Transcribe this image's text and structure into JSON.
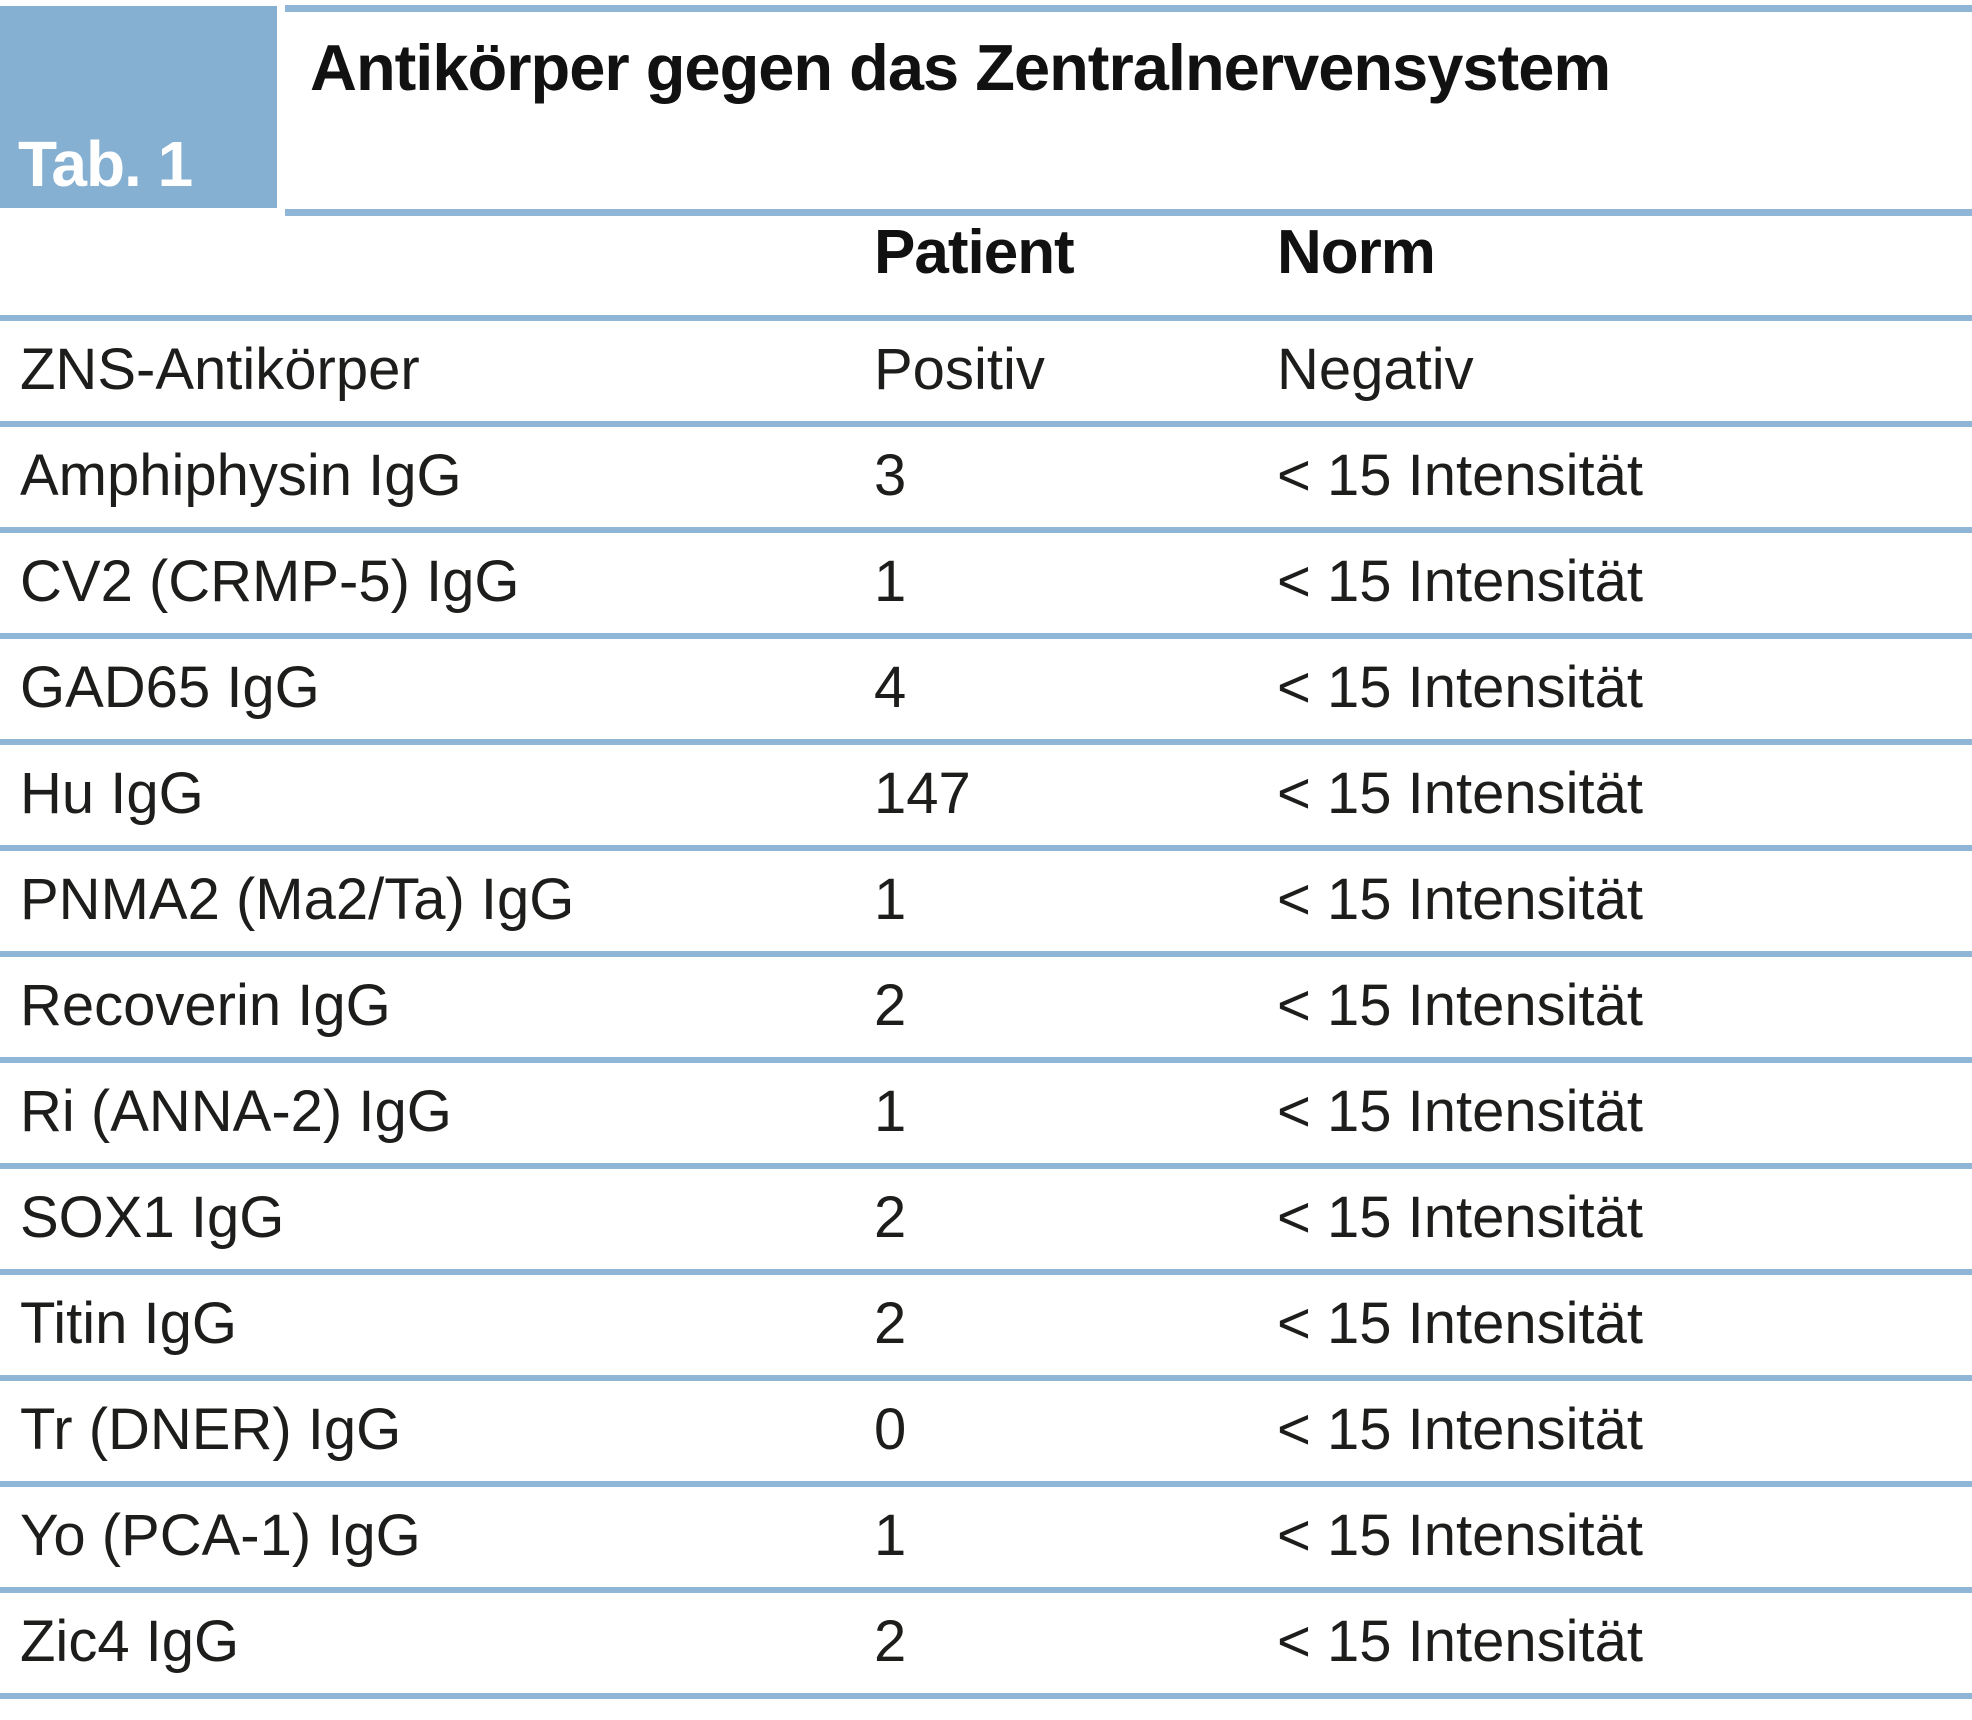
{
  "table": {
    "tag": "Tab. 1",
    "title": "Antikörper gegen das Zentralnervensystem",
    "columns": [
      "",
      "Patient",
      "Norm"
    ],
    "rows": [
      {
        "label": "ZNS-Antikörper",
        "patient": "Positiv",
        "norm": "Negativ"
      },
      {
        "label": "Amphiphysin IgG",
        "patient": "3",
        "norm": "< 15 Intensität"
      },
      {
        "label": "CV2 (CRMP-5) IgG",
        "patient": "1",
        "norm": "< 15 Intensität"
      },
      {
        "label": "GAD65 IgG",
        "patient": "4",
        "norm": "< 15 Intensität"
      },
      {
        "label": "Hu IgG",
        "patient": "147",
        "norm": "< 15 Intensität"
      },
      {
        "label": "PNMA2 (Ma2/Ta) IgG",
        "patient": "1",
        "norm": "< 15 Intensität"
      },
      {
        "label": "Recoverin IgG",
        "patient": "2",
        "norm": "< 15 Intensität"
      },
      {
        "label": "Ri (ANNA-2) IgG",
        "patient": "1",
        "norm": "< 15 Intensität"
      },
      {
        "label": "SOX1 IgG",
        "patient": "2",
        "norm": "< 15 Intensität"
      },
      {
        "label": "Titin IgG",
        "patient": "2",
        "norm": "< 15 Intensität"
      },
      {
        "label": "Tr (DNER) IgG",
        "patient": "0",
        "norm": "< 15 Intensität"
      },
      {
        "label": "Yo (PCA-1) IgG",
        "patient": "1",
        "norm": "< 15 Intensität"
      },
      {
        "label": "Zic4 IgG",
        "patient": "2",
        "norm": "< 15 Intensität"
      }
    ]
  },
  "colors": {
    "tag_box_blue": "#86b0d2",
    "rule_blue": "#8fb6d7",
    "text_black": "#1d1d1b",
    "tag_text": "#ffffff",
    "background": "#ffffff"
  },
  "chart_data": {
    "type": "table",
    "tag": "Tab. 1",
    "title": "Antikörper gegen das Zentralnervensystem",
    "columns": [
      "",
      "Patient",
      "Norm"
    ],
    "rows": [
      [
        "ZNS-Antikörper",
        "Positiv",
        "Negativ"
      ],
      [
        "Amphiphysin IgG",
        "3",
        "< 15 Intensität"
      ],
      [
        "CV2 (CRMP-5) IgG",
        "1",
        "< 15 Intensität"
      ],
      [
        "GAD65 IgG",
        "4",
        "< 15 Intensität"
      ],
      [
        "Hu IgG",
        "147",
        "< 15 Intensität"
      ],
      [
        "PNMA2 (Ma2/Ta) IgG",
        "1",
        "< 15 Intensität"
      ],
      [
        "Recoverin IgG",
        "2",
        "< 15 Intensität"
      ],
      [
        "Ri (ANNA-2) IgG",
        "1",
        "< 15 Intensität"
      ],
      [
        "SOX1 IgG",
        "2",
        "< 15 Intensität"
      ],
      [
        "Titin IgG",
        "2",
        "< 15 Intensität"
      ],
      [
        "Tr (DNER) IgG",
        "0",
        "< 15 Intensität"
      ],
      [
        "Yo (PCA-1) IgG",
        "1",
        "< 15 Intensität"
      ],
      [
        "Zic4 IgG",
        "2",
        "< 15 Intensität"
      ]
    ],
    "patient_values_numeric": {
      "Amphiphysin IgG": 3,
      "CV2 (CRMP-5) IgG": 1,
      "GAD65 IgG": 4,
      "Hu IgG": 147,
      "PNMA2 (Ma2/Ta) IgG": 1,
      "Recoverin IgG": 2,
      "Ri (ANNA-2) IgG": 1,
      "SOX1 IgG": 2,
      "Titin IgG": 2,
      "Tr (DNER) IgG": 0,
      "Yo (PCA-1) IgG": 1,
      "Zic4 IgG": 2
    },
    "norm_threshold": "< 15 Intensität",
    "layout": "header band with tag box top-left, light blue horizontal rules between all rows, no vertical borders"
  }
}
